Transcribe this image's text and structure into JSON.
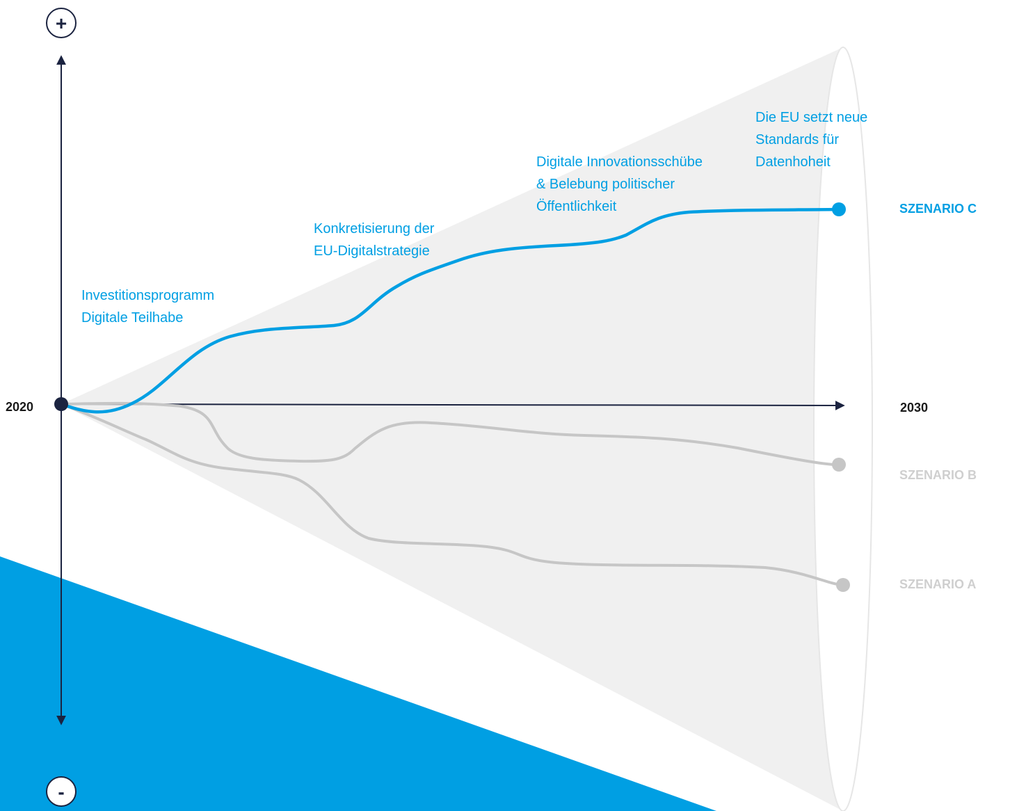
{
  "colors": {
    "accent_blue": "#009fe3",
    "axis_navy": "#1b2340",
    "scenario_grey": "#c6c6c6",
    "label_grey": "#cfcfcf",
    "cone_fill": "#f0f0f0",
    "triangle_blue": "#009fe3"
  },
  "axis": {
    "plus_symbol": "+",
    "minus_symbol": "-",
    "start_year": "2020",
    "end_year": "2030"
  },
  "milestones": [
    {
      "lines": [
        "Investitionsprogramm",
        "Digitale Teilhabe"
      ]
    },
    {
      "lines": [
        "Konkretisierung der",
        "EU-Digitalstrategie"
      ]
    },
    {
      "lines": [
        "Digitale Innovationsschübe",
        "& Belebung politischer",
        "Öffentlichkeit"
      ]
    },
    {
      "lines": [
        "Die EU setzt neue",
        "Standards für",
        "Datenhoheit"
      ]
    }
  ],
  "scenarios": [
    {
      "label": "SZENARIO C",
      "color": "#009fe3"
    },
    {
      "label": "SZENARIO B",
      "color": "#cfcfcf"
    },
    {
      "label": "SZENARIO A",
      "color": "#cfcfcf"
    }
  ]
}
